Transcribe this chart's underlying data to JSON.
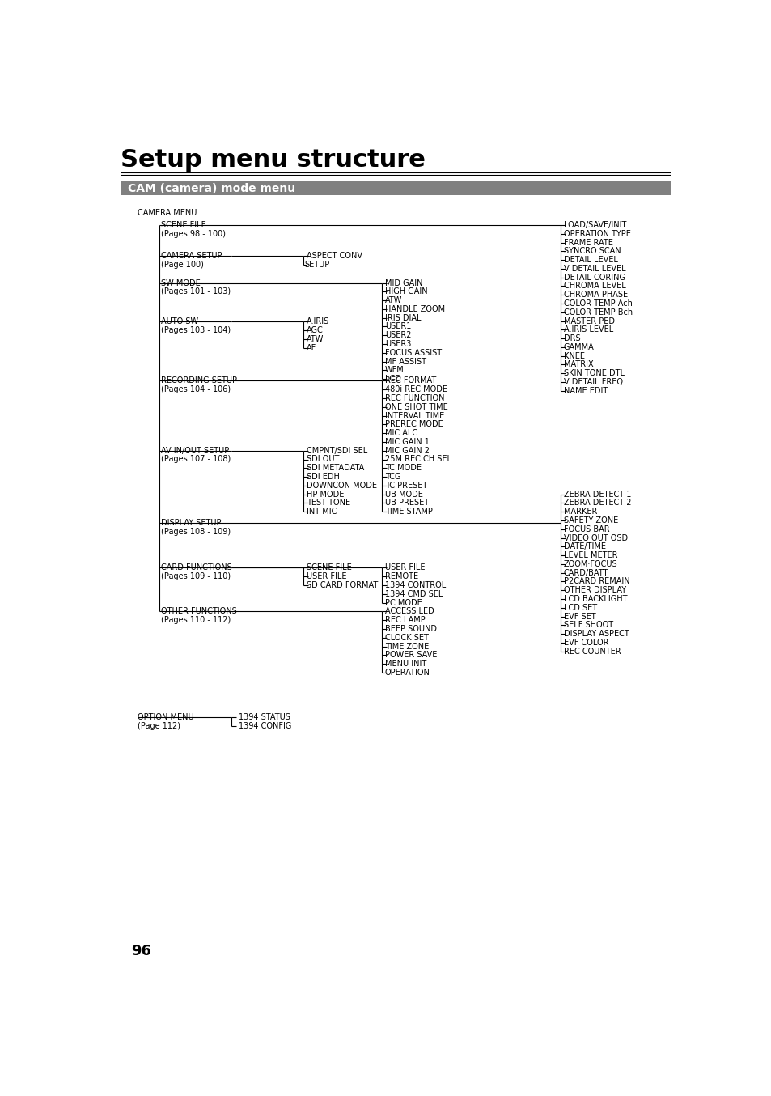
{
  "title": "Setup menu structure",
  "cam_label": "CAM (camera) mode menu",
  "page_num": "96",
  "bg": "#ffffff",
  "header_bg": "#808080",
  "header_fg": "#ffffff",
  "line_color": "#000000",
  "text_color": "#000000"
}
